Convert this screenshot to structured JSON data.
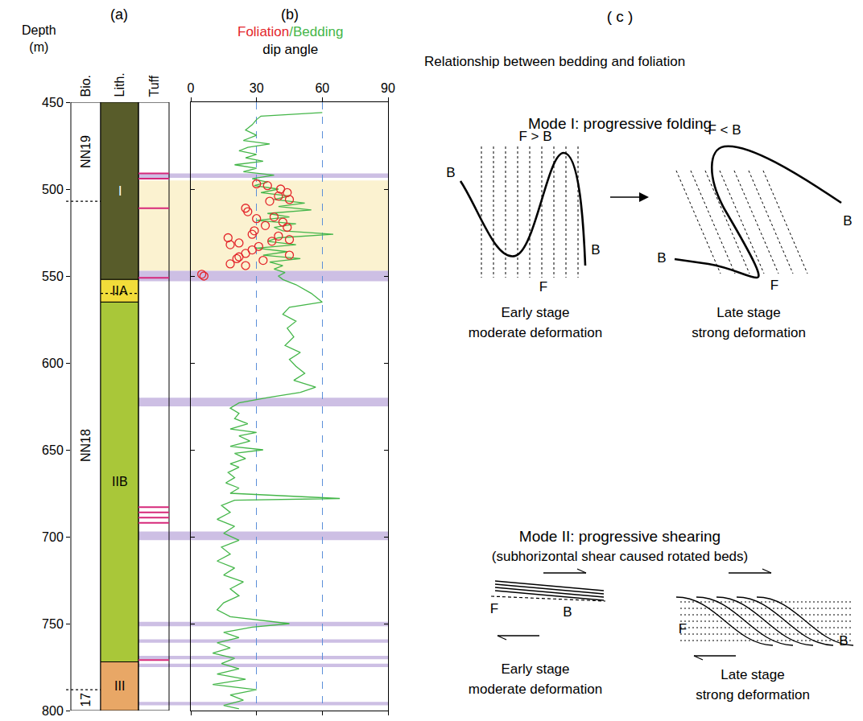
{
  "chart_data": [
    {
      "type": "strip_log",
      "panel_label": "(a)",
      "ylabel": "Depth (m)",
      "ylim": [
        800,
        450
      ],
      "yticks": [
        450,
        500,
        550,
        600,
        650,
        700,
        750,
        800
      ],
      "columns": [
        {
          "header": "Bio.",
          "line_style": "dotted",
          "intervals": [
            {
              "label": "NN19",
              "top": 450,
              "bottom": 507
            },
            {
              "label": "NN18",
              "top": 507,
              "bottom": 788
            },
            {
              "label": "17",
              "top": 788,
              "bottom": 800
            }
          ]
        },
        {
          "header": "Lith.",
          "sub_boundaries": [
            560
          ],
          "intervals": [
            {
              "label": "I",
              "top": 450,
              "bottom": 552,
              "color": "#585c2a"
            },
            {
              "label": "IIA",
              "top": 552,
              "bottom": 565,
              "color": "#f2dc3a"
            },
            {
              "label": "IIB",
              "top": 565,
              "bottom": 772,
              "color": "#a9c739"
            },
            {
              "label": "III",
              "top": 772,
              "bottom": 800,
              "color": "#e8a766"
            }
          ]
        },
        {
          "header": "Tuff",
          "color": "#d6287a",
          "lines": [
            491,
            494,
            511,
            551,
            683,
            686,
            689,
            692,
            771
          ]
        }
      ]
    },
    {
      "type": "line",
      "panel_label": "(b)",
      "xlabel_parts": [
        {
          "text": "Foliation",
          "color": "#e3262b"
        },
        {
          "text": "/Bedding",
          "color": "#44b649"
        }
      ],
      "xlabel": "dip angle",
      "xlim": [
        0,
        90
      ],
      "xticks": [
        0,
        30,
        60,
        90
      ],
      "ylim": [
        800,
        450
      ],
      "yticks": [
        450,
        500,
        550,
        600,
        650,
        700,
        750,
        800
      ],
      "grid": true,
      "highlight": {
        "top": 495,
        "bottom": 547,
        "color": "#fbf2d0"
      },
      "bands": {
        "color": "#cdbfe4",
        "ranges": [
          [
            491,
            493.5
          ],
          [
            547,
            553
          ],
          [
            620,
            625
          ],
          [
            697,
            702
          ],
          [
            749,
            751.5
          ],
          [
            759,
            761
          ],
          [
            768.5,
            770.5
          ],
          [
            773,
            775
          ],
          [
            795,
            797
          ]
        ]
      },
      "series": [
        {
          "name": "Bedding",
          "type": "line",
          "color": "#44b649",
          "x": [
            60,
            32,
            30,
            28,
            25,
            30,
            24,
            36,
            26,
            22,
            30,
            25,
            33,
            20,
            30,
            24,
            38,
            28,
            35,
            29,
            40,
            32,
            45,
            38,
            52,
            40,
            55,
            35,
            45,
            30,
            48,
            38,
            42,
            65,
            40,
            35,
            48,
            30,
            44,
            33,
            50,
            36,
            42,
            38,
            43,
            40,
            42,
            48,
            55,
            60,
            45,
            42,
            48,
            44,
            47,
            43,
            50,
            45,
            48,
            52,
            47,
            57,
            50,
            35,
            22,
            18,
            22,
            20,
            26,
            18,
            30,
            22,
            27,
            18,
            33,
            20,
            25,
            18,
            22,
            17,
            20,
            16,
            22,
            18,
            68,
            20,
            14,
            18,
            12,
            20,
            15,
            22,
            14,
            18,
            12,
            20,
            15,
            24,
            18,
            22,
            15,
            12,
            18,
            45,
            28,
            15,
            22,
            12,
            18,
            10,
            20,
            14,
            22,
            12,
            25,
            10,
            30,
            18,
            24,
            15,
            22
          ],
          "y": [
            456,
            458,
            460,
            463,
            466,
            469,
            472,
            474,
            476,
            478,
            480,
            482,
            484,
            486,
            488,
            490,
            492,
            494,
            496,
            498,
            500,
            502,
            504,
            506,
            508,
            510,
            512,
            514,
            516,
            518,
            520,
            522,
            524,
            526,
            528,
            530,
            532,
            534,
            536,
            538,
            540,
            542,
            544,
            546,
            548,
            550,
            552,
            555,
            560,
            565,
            568,
            572,
            576,
            580,
            585,
            590,
            594,
            598,
            602,
            606,
            610,
            614,
            617,
            620,
            623,
            626,
            629,
            632,
            635,
            638,
            640,
            642,
            645,
            648,
            650,
            652,
            655,
            658,
            660,
            663,
            666,
            669,
            672,
            675,
            678,
            679,
            682,
            686,
            690,
            694,
            698,
            702,
            706,
            710,
            714,
            718,
            722,
            726,
            730,
            734,
            738,
            742,
            746,
            750,
            752,
            755,
            758,
            761,
            764,
            767,
            770,
            773,
            776,
            779,
            782,
            785,
            788,
            791,
            794,
            797,
            799
          ]
        },
        {
          "name": "Foliation",
          "type": "scatter",
          "marker": "open_circle",
          "color": "#e3262b",
          "x": [
            30,
            35,
            41,
            44,
            40,
            45,
            36,
            25,
            26,
            38,
            30,
            42,
            34,
            44,
            29,
            28,
            40,
            17,
            45,
            37,
            22,
            18,
            31,
            28,
            25,
            45,
            22,
            21,
            33,
            18,
            25,
            5,
            6
          ],
          "y": [
            497,
            498,
            500,
            502,
            504,
            506,
            507,
            511,
            513,
            516,
            517,
            519,
            521,
            522,
            524,
            526,
            527,
            528,
            529,
            530,
            531,
            532,
            533,
            535,
            537,
            538,
            539,
            540,
            541,
            543,
            544,
            549,
            550
          ]
        }
      ]
    }
  ],
  "diagram": {
    "label": "( c )",
    "title": "Relationship between  bedding and foliation",
    "modes": [
      {
        "title": "Mode I: progressive folding",
        "stages": [
          {
            "relation": "F > B",
            "labels": [
              "B",
              "B",
              "F"
            ],
            "caption": [
              "Early stage",
              "moderate deformation"
            ]
          },
          {
            "relation": "F < B",
            "labels": [
              "B",
              "B",
              "F"
            ],
            "caption": [
              "Late stage",
              "strong deformation"
            ]
          }
        ]
      },
      {
        "title": "Mode II: progressive shearing",
        "subtitle": "(subhorizontal shear caused rotated beds)",
        "stages": [
          {
            "labels": [
              "F",
              "B"
            ],
            "caption": [
              "Early stage",
              "moderate deformation"
            ]
          },
          {
            "labels": [
              "F",
              "B"
            ],
            "caption": [
              "Late stage",
              "strong deformation"
            ]
          }
        ]
      }
    ]
  }
}
